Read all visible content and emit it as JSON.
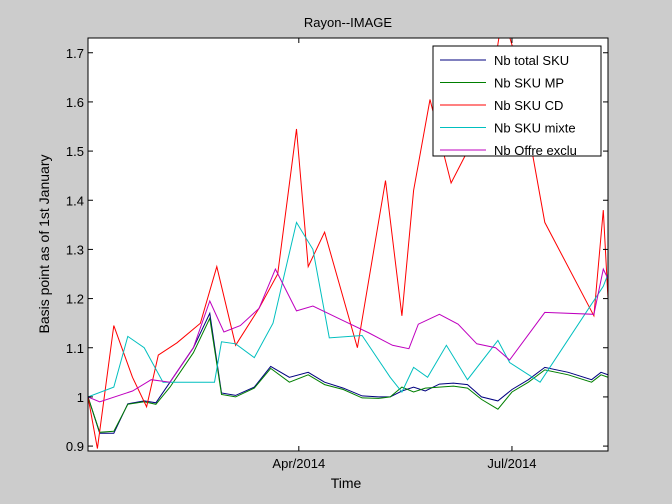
{
  "chart_data": {
    "type": "line",
    "title": "Rayon--IMAGE",
    "xlabel": "Time",
    "ylabel": "Basis point as of 1st January",
    "xlim": [
      "2014-01-01",
      "2014-08-11"
    ],
    "ylim": [
      0.89,
      1.73
    ],
    "yticks": [
      0.9,
      1,
      1.1,
      1.2,
      1.3,
      1.4,
      1.5,
      1.6,
      1.7
    ],
    "ytick_labels": [
      "0.9",
      "1",
      "1.1",
      "1.2",
      "1.3",
      "1.4",
      "1.5",
      "1.6",
      "1.7"
    ],
    "xticks": [
      "2014-04-01",
      "2014-07-01"
    ],
    "xtick_labels": [
      "Apr/2014",
      "Jul/2014"
    ],
    "grid": false,
    "legend_position": "top-right",
    "series": [
      {
        "name": "Nb total SKU",
        "color": "#00007f",
        "points": [
          [
            "2014-01-01",
            1.0
          ],
          [
            "2014-01-06",
            0.926
          ],
          [
            "2014-01-12",
            0.926
          ],
          [
            "2014-01-18",
            0.986
          ],
          [
            "2014-01-25",
            0.992
          ],
          [
            "2014-01-30",
            0.988
          ],
          [
            "2014-02-05",
            1.03
          ],
          [
            "2014-02-15",
            1.1
          ],
          [
            "2014-02-22",
            1.17
          ],
          [
            "2014-02-27",
            1.008
          ],
          [
            "2014-03-05",
            1.003
          ],
          [
            "2014-03-13",
            1.02
          ],
          [
            "2014-03-20",
            1.062
          ],
          [
            "2014-03-28",
            1.04
          ],
          [
            "2014-04-05",
            1.05
          ],
          [
            "2014-04-12",
            1.03
          ],
          [
            "2014-04-20",
            1.018
          ],
          [
            "2014-04-28",
            1.002
          ],
          [
            "2014-05-05",
            1.0
          ],
          [
            "2014-05-10",
            1.0
          ],
          [
            "2014-05-15",
            1.012
          ],
          [
            "2014-05-20",
            1.02
          ],
          [
            "2014-05-25",
            1.012
          ],
          [
            "2014-05-31",
            1.026
          ],
          [
            "2014-06-06",
            1.028
          ],
          [
            "2014-06-12",
            1.025
          ],
          [
            "2014-06-18",
            1.0
          ],
          [
            "2014-06-25",
            0.992
          ],
          [
            "2014-07-01",
            1.015
          ],
          [
            "2014-07-08",
            1.035
          ],
          [
            "2014-07-15",
            1.06
          ],
          [
            "2014-07-25",
            1.05
          ],
          [
            "2014-08-04",
            1.035
          ],
          [
            "2014-08-08",
            1.05
          ],
          [
            "2014-08-11",
            1.045
          ]
        ]
      },
      {
        "name": "Nb SKU MP",
        "color": "#007f00",
        "points": [
          [
            "2014-01-01",
            1.0
          ],
          [
            "2014-01-06",
            0.928
          ],
          [
            "2014-01-12",
            0.93
          ],
          [
            "2014-01-18",
            0.985
          ],
          [
            "2014-01-25",
            0.99
          ],
          [
            "2014-01-30",
            0.985
          ],
          [
            "2014-02-05",
            1.02
          ],
          [
            "2014-02-15",
            1.09
          ],
          [
            "2014-02-22",
            1.16
          ],
          [
            "2014-02-27",
            1.005
          ],
          [
            "2014-03-05",
            1.0
          ],
          [
            "2014-03-13",
            1.018
          ],
          [
            "2014-03-20",
            1.058
          ],
          [
            "2014-03-28",
            1.03
          ],
          [
            "2014-04-05",
            1.045
          ],
          [
            "2014-04-12",
            1.025
          ],
          [
            "2014-04-20",
            1.015
          ],
          [
            "2014-04-28",
            0.998
          ],
          [
            "2014-05-05",
            0.997
          ],
          [
            "2014-05-10",
            1.0
          ],
          [
            "2014-05-15",
            1.02
          ],
          [
            "2014-05-20",
            1.01
          ],
          [
            "2014-05-25",
            1.018
          ],
          [
            "2014-05-31",
            1.02
          ],
          [
            "2014-06-06",
            1.022
          ],
          [
            "2014-06-12",
            1.018
          ],
          [
            "2014-06-18",
            0.995
          ],
          [
            "2014-06-25",
            0.975
          ],
          [
            "2014-07-01",
            1.01
          ],
          [
            "2014-07-08",
            1.03
          ],
          [
            "2014-07-15",
            1.055
          ],
          [
            "2014-07-25",
            1.045
          ],
          [
            "2014-08-04",
            1.03
          ],
          [
            "2014-08-08",
            1.045
          ],
          [
            "2014-08-11",
            1.04
          ]
        ]
      },
      {
        "name": "Nb SKU CD",
        "color": "#ff0000",
        "points": [
          [
            "2014-01-01",
            1.0
          ],
          [
            "2014-01-05",
            0.895
          ],
          [
            "2014-01-12",
            1.145
          ],
          [
            "2014-01-20",
            1.04
          ],
          [
            "2014-01-26",
            0.98
          ],
          [
            "2014-01-31",
            1.085
          ],
          [
            "2014-02-08",
            1.11
          ],
          [
            "2014-02-18",
            1.15
          ],
          [
            "2014-02-25",
            1.265
          ],
          [
            "2014-03-05",
            1.105
          ],
          [
            "2014-03-15",
            1.18
          ],
          [
            "2014-03-23",
            1.25
          ],
          [
            "2014-03-31",
            1.545
          ],
          [
            "2014-04-05",
            1.265
          ],
          [
            "2014-04-12",
            1.335
          ],
          [
            "2014-04-26",
            1.1
          ],
          [
            "2014-05-08",
            1.44
          ],
          [
            "2014-05-15",
            1.165
          ],
          [
            "2014-05-20",
            1.42
          ],
          [
            "2014-05-27",
            1.605
          ],
          [
            "2014-06-05",
            1.435
          ],
          [
            "2014-06-12",
            1.5
          ],
          [
            "2014-06-19",
            1.53
          ],
          [
            "2014-06-27",
            1.78
          ],
          [
            "2014-07-02",
            1.7
          ],
          [
            "2014-07-15",
            1.355
          ],
          [
            "2014-08-05",
            1.165
          ],
          [
            "2014-08-09",
            1.38
          ],
          [
            "2014-08-11",
            1.2
          ]
        ]
      },
      {
        "name": "Nb SKU mixte",
        "color": "#00bfbf",
        "points": [
          [
            "2014-01-01",
            1.0
          ],
          [
            "2014-01-12",
            1.02
          ],
          [
            "2014-01-18",
            1.123
          ],
          [
            "2014-01-25",
            1.1
          ],
          [
            "2014-02-02",
            1.03
          ],
          [
            "2014-02-24",
            1.03
          ],
          [
            "2014-02-27",
            1.112
          ],
          [
            "2014-03-05",
            1.108
          ],
          [
            "2014-03-13",
            1.08
          ],
          [
            "2014-03-21",
            1.15
          ],
          [
            "2014-03-31",
            1.355
          ],
          [
            "2014-04-07",
            1.3
          ],
          [
            "2014-04-14",
            1.12
          ],
          [
            "2014-04-28",
            1.125
          ],
          [
            "2014-05-10",
            1.04
          ],
          [
            "2014-05-15",
            1.01
          ],
          [
            "2014-05-20",
            1.06
          ],
          [
            "2014-05-26",
            1.04
          ],
          [
            "2014-06-03",
            1.105
          ],
          [
            "2014-06-12",
            1.035
          ],
          [
            "2014-06-25",
            1.115
          ],
          [
            "2014-06-30",
            1.07
          ],
          [
            "2014-07-13",
            1.03
          ],
          [
            "2014-08-09",
            1.225
          ],
          [
            "2014-08-11",
            1.25
          ]
        ]
      },
      {
        "name": "Nb Offre exclu",
        "color": "#bf00bf",
        "points": [
          [
            "2014-01-01",
            1.0
          ],
          [
            "2014-01-06",
            0.99
          ],
          [
            "2014-01-20",
            1.012
          ],
          [
            "2014-01-28",
            1.035
          ],
          [
            "2014-02-05",
            1.03
          ],
          [
            "2014-02-15",
            1.1
          ],
          [
            "2014-02-22",
            1.195
          ],
          [
            "2014-02-28",
            1.132
          ],
          [
            "2014-03-07",
            1.145
          ],
          [
            "2014-03-15",
            1.18
          ],
          [
            "2014-03-22",
            1.26
          ],
          [
            "2014-03-31",
            1.175
          ],
          [
            "2014-04-07",
            1.185
          ],
          [
            "2014-04-20",
            1.155
          ],
          [
            "2014-05-01",
            1.13
          ],
          [
            "2014-05-11",
            1.105
          ],
          [
            "2014-05-18",
            1.098
          ],
          [
            "2014-05-22",
            1.148
          ],
          [
            "2014-05-31",
            1.168
          ],
          [
            "2014-06-08",
            1.148
          ],
          [
            "2014-06-16",
            1.108
          ],
          [
            "2014-06-24",
            1.1
          ],
          [
            "2014-06-30",
            1.075
          ],
          [
            "2014-07-15",
            1.172
          ],
          [
            "2014-08-05",
            1.168
          ],
          [
            "2014-08-09",
            1.26
          ],
          [
            "2014-08-11",
            1.24
          ]
        ]
      }
    ]
  }
}
